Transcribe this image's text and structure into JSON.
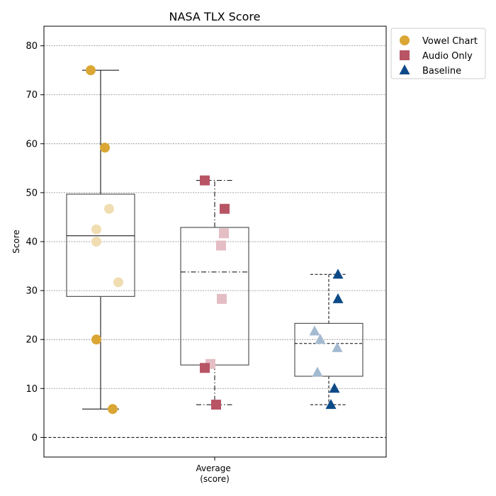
{
  "chart_data": {
    "type": "box",
    "title": "NASA TLX Score",
    "xlabel": "Average\n(score)",
    "ylabel": "Score",
    "ylim": [
      -4,
      84
    ],
    "yticks": [
      0,
      10,
      20,
      30,
      40,
      50,
      60,
      70,
      80
    ],
    "grid": "horizontal-dotted",
    "reference_line": 0,
    "legend_position": "outside top-right",
    "series": [
      {
        "name": "Vowel Chart",
        "color": "#DAA634",
        "marker": "circle",
        "whisker_style": "solid",
        "median_style": "solid",
        "box": {
          "q1": 28.8,
          "median": 41.2,
          "q3": 49.7,
          "whisker_low": 5.8,
          "whisker_high": 75
        },
        "points": [
          {
            "y": 75.0,
            "faded": false,
            "jitter": -0.14
          },
          {
            "y": 59.2,
            "faded": false,
            "jitter": 0.06
          },
          {
            "y": 46.7,
            "faded": true,
            "jitter": 0.12
          },
          {
            "y": 42.5,
            "faded": true,
            "jitter": -0.06
          },
          {
            "y": 40.0,
            "faded": true,
            "jitter": -0.06
          },
          {
            "y": 31.7,
            "faded": true,
            "jitter": 0.25
          },
          {
            "y": 20.0,
            "faded": false,
            "jitter": -0.06
          },
          {
            "y": 5.8,
            "faded": false,
            "jitter": 0.17
          }
        ]
      },
      {
        "name": "Audio Only",
        "color": "#B85565",
        "marker": "square",
        "whisker_style": "dashdot",
        "median_style": "dashdot",
        "box": {
          "q1": 14.8,
          "median": 33.8,
          "q3": 42.9,
          "whisker_low": 6.7,
          "whisker_high": 52.5
        },
        "points": [
          {
            "y": 52.5,
            "faded": false,
            "jitter": -0.14
          },
          {
            "y": 46.7,
            "faded": false,
            "jitter": 0.14
          },
          {
            "y": 41.7,
            "faded": true,
            "jitter": 0.13
          },
          {
            "y": 39.2,
            "faded": true,
            "jitter": 0.09
          },
          {
            "y": 28.3,
            "faded": true,
            "jitter": 0.1
          },
          {
            "y": 15.0,
            "faded": true,
            "jitter": -0.06
          },
          {
            "y": 14.2,
            "faded": false,
            "jitter": -0.14
          },
          {
            "y": 6.7,
            "faded": false,
            "jitter": 0.02
          }
        ]
      },
      {
        "name": "Baseline",
        "color": "#0D4A87",
        "marker": "triangle",
        "whisker_style": "dashed",
        "median_style": "dashed",
        "box": {
          "q1": 12.5,
          "median": 19.2,
          "q3": 23.3,
          "whisker_low": 6.7,
          "whisker_high": 33.3
        },
        "points": [
          {
            "y": 33.3,
            "faded": false,
            "jitter": 0.13
          },
          {
            "y": 28.3,
            "faded": false,
            "jitter": 0.13
          },
          {
            "y": 21.7,
            "faded": true,
            "jitter": -0.2
          },
          {
            "y": 20.0,
            "faded": true,
            "jitter": -0.12
          },
          {
            "y": 18.3,
            "faded": true,
            "jitter": 0.12
          },
          {
            "y": 13.3,
            "faded": true,
            "jitter": -0.16
          },
          {
            "y": 10.0,
            "faded": false,
            "jitter": 0.08
          },
          {
            "y": 6.7,
            "faded": false,
            "jitter": 0.03
          }
        ]
      }
    ]
  }
}
